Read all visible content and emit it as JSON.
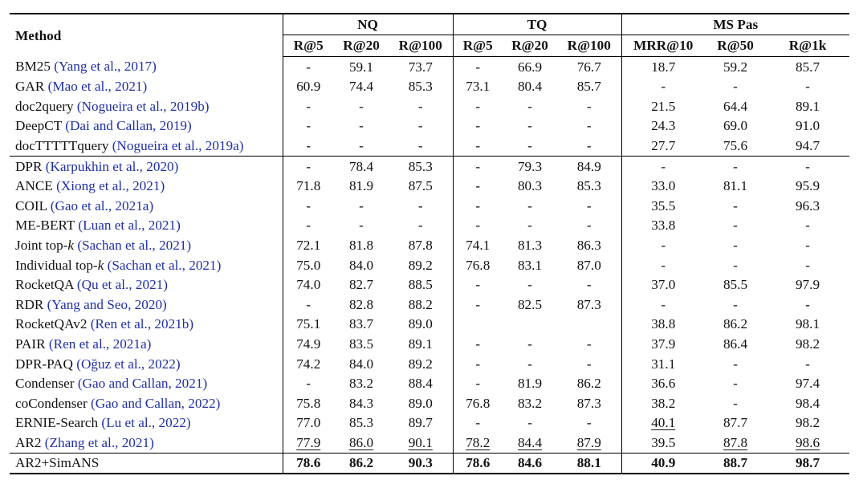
{
  "header": {
    "method": "Method",
    "groups": [
      {
        "label": "NQ",
        "cols": [
          "R@5",
          "R@20",
          "R@100"
        ]
      },
      {
        "label": "TQ",
        "cols": [
          "R@5",
          "R@20",
          "R@100"
        ]
      },
      {
        "label": "MS Pas",
        "cols": [
          "MRR@10",
          "R@50",
          "R@1k"
        ]
      }
    ]
  },
  "rows": [
    {
      "name": "BM25",
      "cite": "Yang et al., 2017",
      "values": [
        "-",
        "59.1",
        "73.7",
        "-",
        "66.9",
        "76.7",
        "18.7",
        "59.2",
        "85.7"
      ]
    },
    {
      "name": "GAR",
      "cite": "Mao et al., 2021",
      "values": [
        "60.9",
        "74.4",
        "85.3",
        "73.1",
        "80.4",
        "85.7",
        "-",
        "-",
        "-"
      ]
    },
    {
      "name": "doc2query",
      "cite": "Nogueira et al., 2019b",
      "values": [
        "-",
        "-",
        "-",
        "-",
        "-",
        "-",
        "21.5",
        "64.4",
        "89.1"
      ]
    },
    {
      "name": "DeepCT",
      "cite": "Dai and Callan, 2019",
      "values": [
        "-",
        "-",
        "-",
        "-",
        "-",
        "-",
        "24.3",
        "69.0",
        "91.0"
      ]
    },
    {
      "name": "docTTTTTquery",
      "cite": "Nogueira et al., 2019a",
      "values": [
        "-",
        "-",
        "-",
        "-",
        "-",
        "-",
        "27.7",
        "75.6",
        "94.7"
      ]
    },
    {
      "name": "DPR",
      "cite": "Karpukhin et al., 2020",
      "values": [
        "-",
        "78.4",
        "85.3",
        "-",
        "79.3",
        "84.9",
        "-",
        "-",
        "-"
      ]
    },
    {
      "name": "ANCE",
      "cite": "Xiong et al., 2021",
      "values": [
        "71.8",
        "81.9",
        "87.5",
        "-",
        "80.3",
        "85.3",
        "33.0",
        "81.1",
        "95.9"
      ]
    },
    {
      "name": "COIL",
      "cite": "Gao et al., 2021a",
      "values": [
        "-",
        "-",
        "-",
        "-",
        "-",
        "-",
        "35.5",
        "-",
        "96.3"
      ]
    },
    {
      "name": "ME-BERT",
      "cite": "Luan et al., 2021",
      "values": [
        "-",
        "-",
        "-",
        "-",
        "-",
        "-",
        "33.8",
        "-",
        "-"
      ]
    },
    {
      "name": "Joint top-k",
      "cite": "Sachan et al., 2021",
      "values": [
        "72.1",
        "81.8",
        "87.8",
        "74.1",
        "81.3",
        "86.3",
        "-",
        "-",
        "-"
      ]
    },
    {
      "name": "Individual top-k",
      "cite": "Sachan et al., 2021",
      "values": [
        "75.0",
        "84.0",
        "89.2",
        "76.8",
        "83.1",
        "87.0",
        "-",
        "-",
        "-"
      ]
    },
    {
      "name": "RocketQA",
      "cite": "Qu et al., 2021",
      "values": [
        "74.0",
        "82.7",
        "88.5",
        "-",
        "-",
        "-",
        "37.0",
        "85.5",
        "97.9"
      ]
    },
    {
      "name": "RDR",
      "cite": "Yang and Seo, 2020",
      "values": [
        "-",
        "82.8",
        "88.2",
        "-",
        "82.5",
        "87.3",
        "-",
        "-",
        "-"
      ]
    },
    {
      "name": "RocketQAv2",
      "cite": "Ren et al., 2021b",
      "values": [
        "75.1",
        "83.7",
        "89.0",
        "",
        "",
        "",
        "38.8",
        "86.2",
        "98.1"
      ]
    },
    {
      "name": "PAIR",
      "cite": "Ren et al., 2021a",
      "values": [
        "74.9",
        "83.5",
        "89.1",
        "-",
        "-",
        "-",
        "37.9",
        "86.4",
        "98.2"
      ]
    },
    {
      "name": "DPR-PAQ",
      "cite": "Oğuz et al., 2022",
      "values": [
        "74.2",
        "84.0",
        "89.2",
        "-",
        "-",
        "-",
        "31.1",
        "-",
        "-"
      ]
    },
    {
      "name": "Condenser",
      "cite": "Gao and Callan, 2021",
      "values": [
        "-",
        "83.2",
        "88.4",
        "-",
        "81.9",
        "86.2",
        "36.6",
        "-",
        "97.4"
      ]
    },
    {
      "name": "coCondenser",
      "cite": "Gao and Callan, 2022",
      "values": [
        "75.8",
        "84.3",
        "89.0",
        "76.8",
        "83.2",
        "87.3",
        "38.2",
        "-",
        "98.4"
      ]
    },
    {
      "name": "ERNIE-Search",
      "cite": "Lu et al., 2022",
      "values": [
        "77.0",
        "85.3",
        "89.7",
        "-",
        "-",
        "-",
        "40.1",
        "87.7",
        "98.2"
      ],
      "underline": [
        6
      ]
    },
    {
      "name": "AR2",
      "cite": "Zhang et al., 2021",
      "values": [
        "77.9",
        "86.0",
        "90.1",
        "78.2",
        "84.4",
        "87.9",
        "39.5",
        "87.8",
        "98.6"
      ],
      "underline": [
        0,
        1,
        2,
        3,
        4,
        5,
        7,
        8
      ]
    }
  ],
  "final_row": {
    "name": "AR2+SimANS",
    "values": [
      "78.6",
      "86.2",
      "90.3",
      "78.6",
      "84.6",
      "88.1",
      "40.9",
      "88.7",
      "98.7"
    ]
  }
}
